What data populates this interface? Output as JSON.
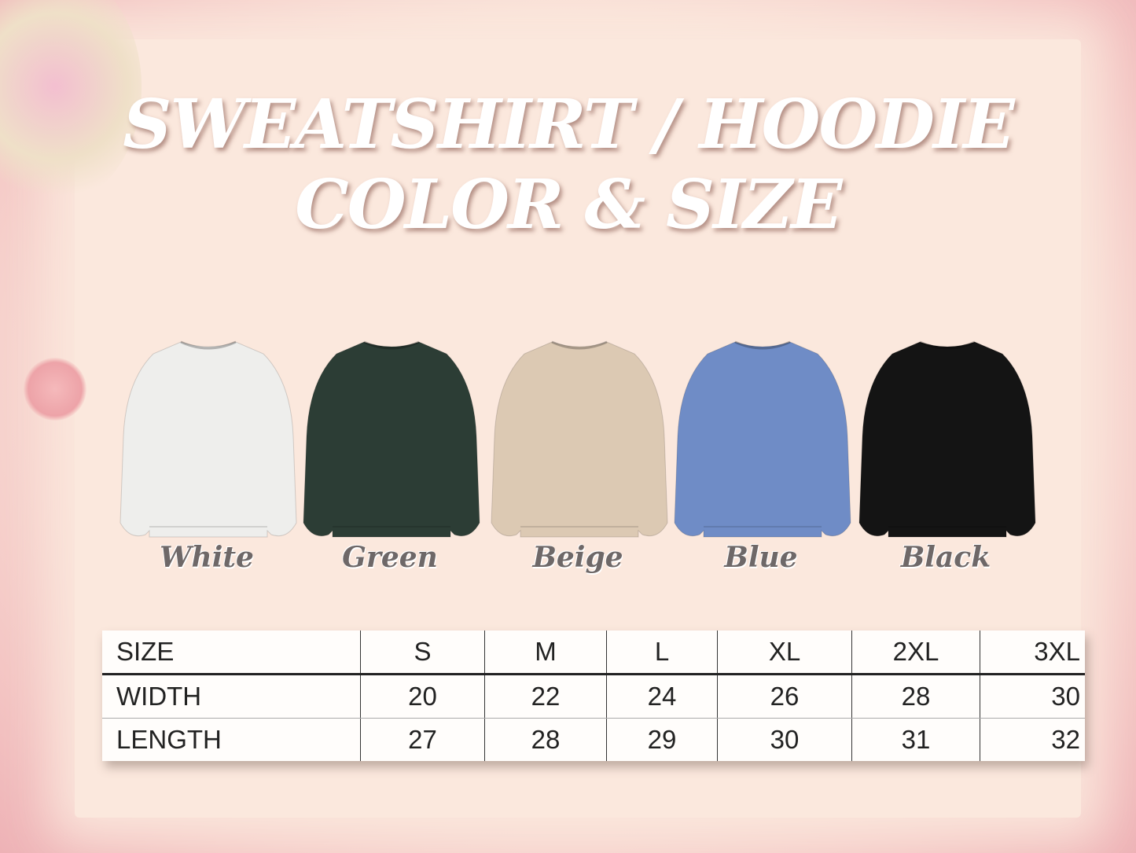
{
  "title": {
    "line1": "SWEATSHIRT / HOODIE",
    "line2": "COLOR & SIZE"
  },
  "colors": [
    {
      "name": "White",
      "hex": "#eeeeec"
    },
    {
      "name": "Green",
      "hex": "#2c3d35"
    },
    {
      "name": "Beige",
      "hex": "#dcc9b3"
    },
    {
      "name": "Blue",
      "hex": "#6f8cc6"
    },
    {
      "name": "Black",
      "hex": "#141414"
    }
  ],
  "size_table": {
    "headers": [
      "SIZE",
      "S",
      "M",
      "L",
      "XL",
      "2XL",
      "3XL"
    ],
    "rows": [
      [
        "WIDTH",
        "20",
        "22",
        "24",
        "26",
        "28",
        "30"
      ],
      [
        "LENGTH",
        "27",
        "28",
        "29",
        "30",
        "31",
        "32"
      ]
    ]
  }
}
